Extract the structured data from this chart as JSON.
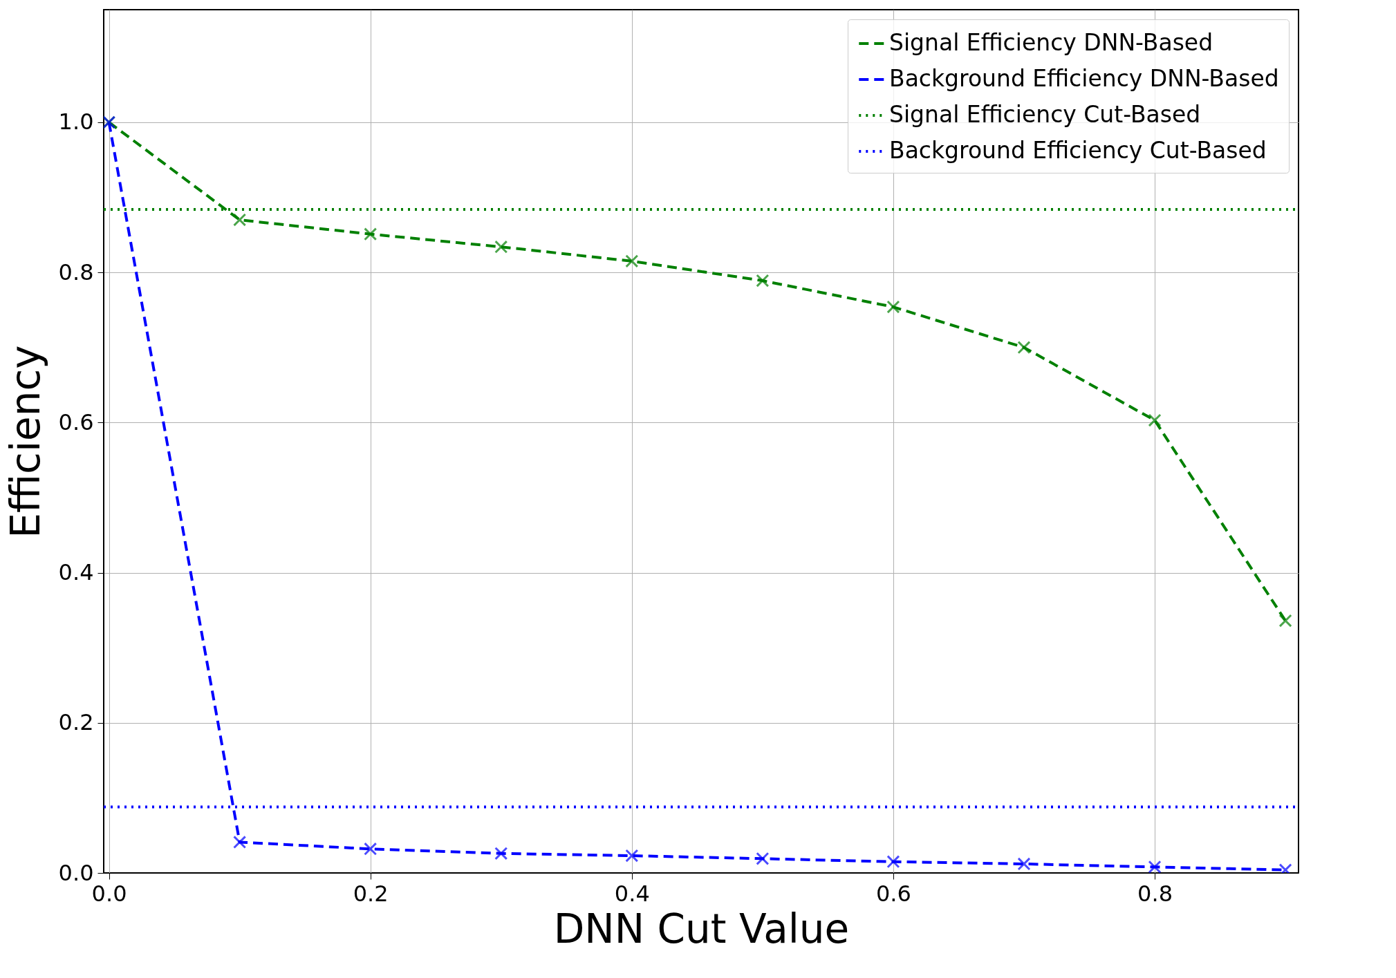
{
  "chart_data": {
    "type": "line",
    "xlabel": "DNN Cut Value",
    "ylabel": "Efficiency",
    "x": [
      0.0,
      0.1,
      0.2,
      0.3,
      0.4,
      0.5,
      0.6,
      0.7,
      0.8,
      0.9
    ],
    "series": [
      {
        "name": "Signal Efficiency DNN-Based",
        "color": "#008000",
        "marker": "cross",
        "line_style": "dashed",
        "values": [
          1.0,
          0.87,
          0.851,
          0.834,
          0.815,
          0.789,
          0.754,
          0.7,
          0.603,
          0.336
        ]
      },
      {
        "name": "Background Efficiency DNN-Based",
        "color": "#0000ff",
        "marker": "cross",
        "line_style": "dashed",
        "values": [
          1.0,
          0.041,
          0.032,
          0.026,
          0.023,
          0.019,
          0.015,
          0.012,
          0.008,
          0.004
        ]
      }
    ],
    "ref_lines": [
      {
        "axis": "y",
        "value": 0.884,
        "label": "Signal Efficiency Cut-Based",
        "color": "#008000",
        "line_style": "dotted"
      },
      {
        "axis": "y",
        "value": 0.088,
        "label": "Background Efficiency Cut-Based",
        "color": "#0000ff",
        "line_style": "dotted"
      }
    ],
    "xlim": [
      -0.004,
      0.91
    ],
    "xticks": [
      {
        "value": 0,
        "label": "0.0"
      },
      0.2,
      0.4,
      0.6,
      0.8
    ],
    "ylim": [
      0,
      1.15
    ],
    "yticks": [
      {
        "value": 0,
        "label": "0.0"
      },
      0.2,
      0.4,
      0.6,
      0.8,
      {
        "value": 1,
        "label": "1.0"
      }
    ],
    "grid": true,
    "legend": "top right"
  }
}
